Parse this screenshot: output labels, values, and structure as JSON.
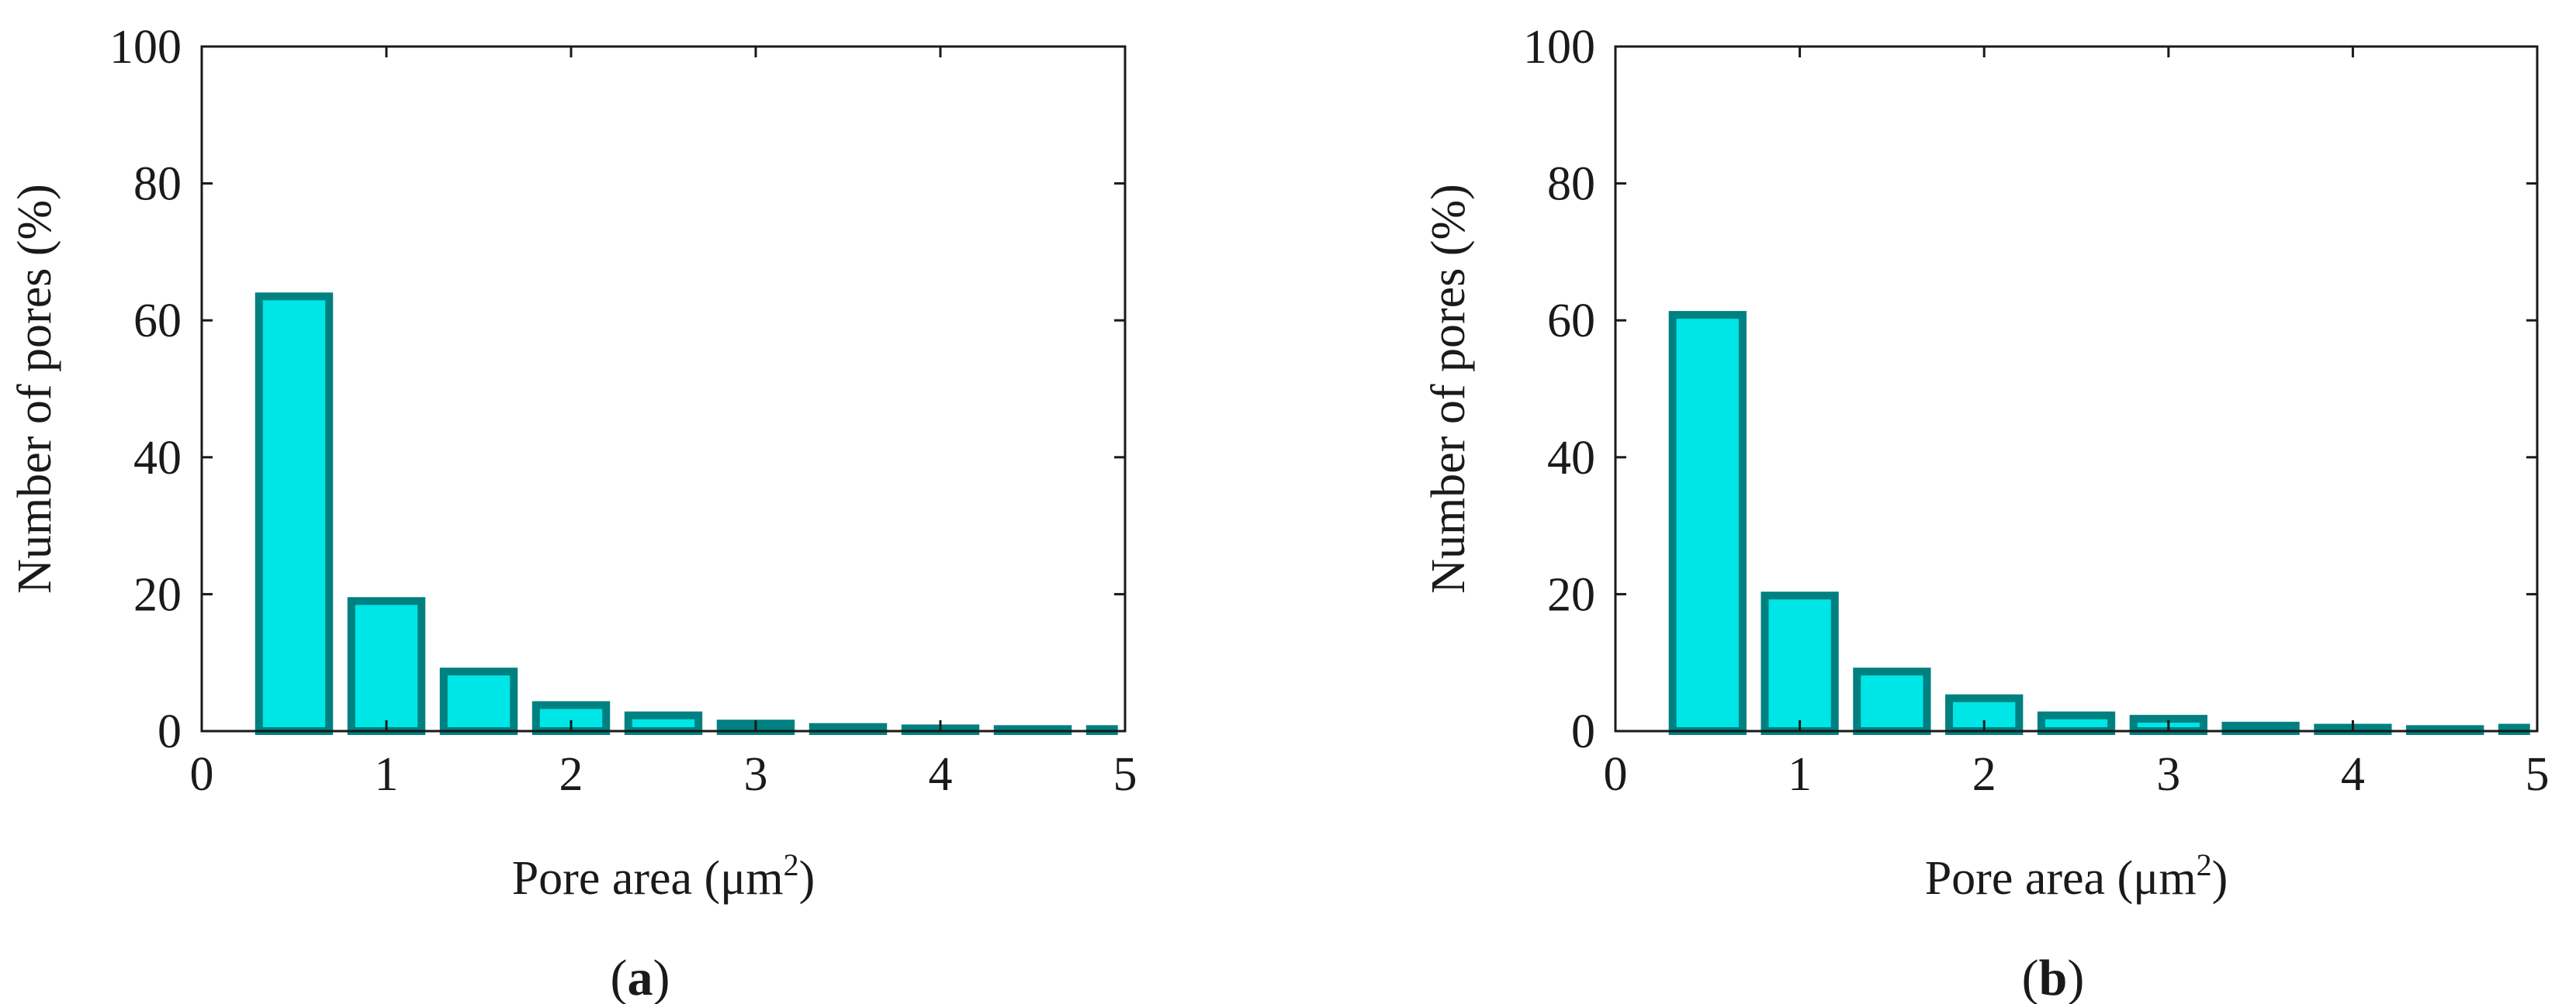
{
  "chart_data": [
    {
      "panel": "a",
      "type": "bar",
      "xlabel": "Pore area (μm",
      "xlabel_sup": "2",
      "xlabel_end": ")",
      "ylabel": "Number of pores (%)",
      "xlim": [
        0,
        5
      ],
      "ylim": [
        0,
        100
      ],
      "xticks": [
        "0",
        "1",
        "2",
        "3",
        "4",
        "5"
      ],
      "yticks": [
        "0",
        "20",
        "40",
        "60",
        "80",
        "100"
      ],
      "bin_edges": [
        0.25,
        0.75,
        1.25,
        1.75,
        2.25,
        2.75,
        3.25,
        3.75,
        4.25,
        4.75,
        5.0
      ],
      "values": [
        63.5,
        19,
        8.7,
        3.8,
        2.3,
        1.1,
        0.6,
        0.4,
        0.3,
        0.3
      ],
      "grid": false
    },
    {
      "panel": "b",
      "type": "bar",
      "xlabel": "Pore area (μm",
      "xlabel_sup": "2",
      "xlabel_end": ")",
      "ylabel": "Number of pores (%)",
      "xlim": [
        0,
        5
      ],
      "ylim": [
        0,
        100
      ],
      "xticks": [
        "0",
        "1",
        "2",
        "3",
        "4",
        "5"
      ],
      "yticks": [
        "0",
        "20",
        "40",
        "60",
        "80",
        "100"
      ],
      "bin_edges": [
        0.25,
        0.75,
        1.25,
        1.75,
        2.25,
        2.75,
        3.25,
        3.75,
        4.25,
        4.75,
        5.0
      ],
      "values": [
        60.8,
        19.8,
        8.7,
        4.8,
        2.3,
        1.8,
        0.8,
        0.5,
        0.3,
        0.5
      ],
      "grid": false
    }
  ],
  "style": {
    "bar_fill": "#00e5e5",
    "bar_stroke": "#008080",
    "axis_color": "#1a1a1a"
  }
}
